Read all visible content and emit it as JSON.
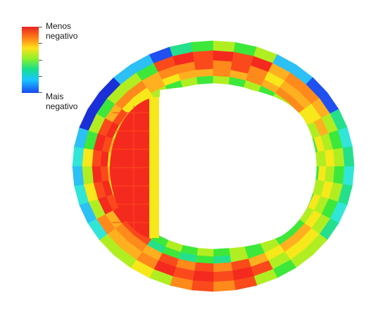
{
  "legend": {
    "top_label": "Menos\nnegativo",
    "bottom_label": "Mais\nnegativo",
    "colors": [
      "#e8231f",
      "#ff7a1a",
      "#ffe11a",
      "#8ef02a",
      "#14e08a",
      "#19c7ff",
      "#1848f0"
    ]
  },
  "heatmap": {
    "colors": {
      "red": "#f52a1e",
      "orange_red": "#fa4a1c",
      "orange": "#ff8a1c",
      "yellow_orange": "#ffb020",
      "yellow": "#f6e81a",
      "lime": "#b0ee22",
      "green": "#3de83a",
      "green_cyan": "#24e08c",
      "cyan": "#31e6d8",
      "light_blue": "#2cc0f4",
      "blue": "#2050f0",
      "deep_blue": "#1b2fd8",
      "white": "#ffffff"
    }
  }
}
